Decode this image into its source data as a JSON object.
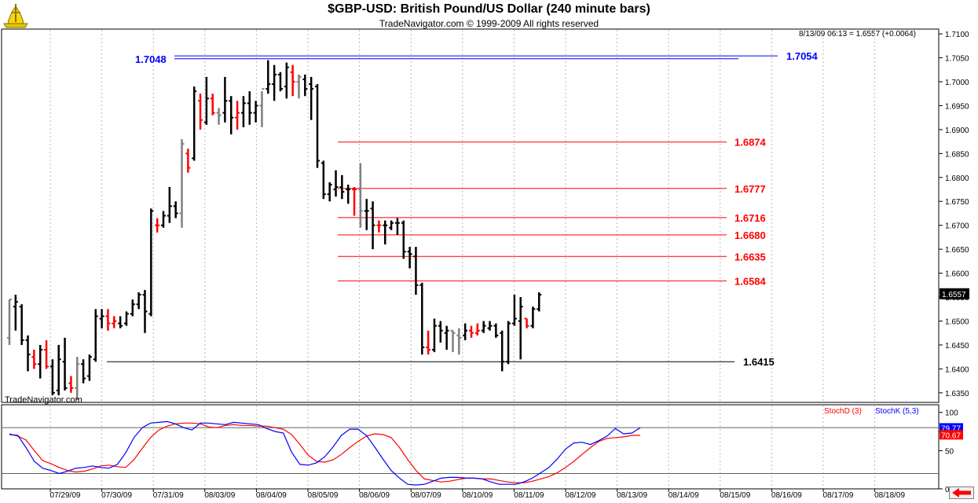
{
  "header": {
    "title": "$GBP-USD:  British Pound/US Dollar  (240 minute bars)",
    "subtitle": "TradeNavigator.com © 1999-2009 All rights reserved",
    "quote": "8/13/09 06:13 = 1.6557 (+0.0064)",
    "watermark": "TradeNavigator.com"
  },
  "colors": {
    "up_bar": "#000000",
    "down_bar": "#ff0000",
    "neutral_bar": "#808080",
    "retracement": "#ff0000",
    "top_level": "#0000ff",
    "stoch_d": "#ff0000",
    "stoch_k": "#0000ff"
  },
  "chart_data": [
    {
      "type": "ohlc",
      "title": "$GBP-USD:  British Pound/US Dollar  (240 minute bars)",
      "x_tick_labels": [
        "07/29/09",
        "07/30/09",
        "07/31/09",
        "08/03/09",
        "08/04/09",
        "08/05/09",
        "08/06/09",
        "08/07/09",
        "08/10/09",
        "08/11/09",
        "08/12/09",
        "08/13/09",
        "08/14/09",
        "08/15/09",
        "08/16/09",
        "08/17/09",
        "08/18/09"
      ],
      "y_ticks": [
        "1.6350",
        "1.6400",
        "1.6450",
        "1.6500",
        "1.6550",
        "1.6600",
        "1.6650",
        "1.6700",
        "1.6750",
        "1.6800",
        "1.6850",
        "1.6900",
        "1.6950",
        "1.7000",
        "1.7050",
        "1.7100"
      ],
      "ylim": [
        1.633,
        1.711
      ],
      "last_price_label": "1.6557",
      "bars": [
        {
          "o": 1.6465,
          "h": 1.6545,
          "l": 1.645,
          "c": 1.6545,
          "t": "n"
        },
        {
          "o": 1.653,
          "h": 1.6555,
          "l": 1.648,
          "c": 1.654,
          "t": "u"
        },
        {
          "o": 1.653,
          "h": 1.6535,
          "l": 1.645,
          "c": 1.646,
          "t": "u"
        },
        {
          "o": 1.646,
          "h": 1.647,
          "l": 1.6395,
          "c": 1.643,
          "t": "u"
        },
        {
          "o": 1.6425,
          "h": 1.644,
          "l": 1.64,
          "c": 1.641,
          "t": "d"
        },
        {
          "o": 1.641,
          "h": 1.645,
          "l": 1.638,
          "c": 1.644,
          "t": "u"
        },
        {
          "o": 1.644,
          "h": 1.646,
          "l": 1.64,
          "c": 1.6405,
          "t": "d"
        },
        {
          "o": 1.6405,
          "h": 1.642,
          "l": 1.6345,
          "c": 1.635,
          "t": "u"
        },
        {
          "o": 1.6355,
          "h": 1.645,
          "l": 1.6345,
          "c": 1.642,
          "t": "u"
        },
        {
          "o": 1.6415,
          "h": 1.6465,
          "l": 1.6355,
          "c": 1.636,
          "t": "u"
        },
        {
          "o": 1.637,
          "h": 1.6385,
          "l": 1.635,
          "c": 1.636,
          "t": "d"
        },
        {
          "o": 1.636,
          "h": 1.6425,
          "l": 1.6335,
          "c": 1.641,
          "t": "n"
        },
        {
          "o": 1.641,
          "h": 1.642,
          "l": 1.637,
          "c": 1.638,
          "t": "u"
        },
        {
          "o": 1.6385,
          "h": 1.643,
          "l": 1.6375,
          "c": 1.6425,
          "t": "u"
        },
        {
          "o": 1.642,
          "h": 1.6525,
          "l": 1.6415,
          "c": 1.651,
          "t": "u"
        },
        {
          "o": 1.6505,
          "h": 1.6525,
          "l": 1.6485,
          "c": 1.651,
          "t": "u"
        },
        {
          "o": 1.651,
          "h": 1.6525,
          "l": 1.648,
          "c": 1.6495,
          "t": "d"
        },
        {
          "o": 1.6495,
          "h": 1.651,
          "l": 1.6485,
          "c": 1.65,
          "t": "d"
        },
        {
          "o": 1.6495,
          "h": 1.651,
          "l": 1.6485,
          "c": 1.649,
          "t": "u"
        },
        {
          "o": 1.6495,
          "h": 1.652,
          "l": 1.649,
          "c": 1.6515,
          "t": "u"
        },
        {
          "o": 1.6515,
          "h": 1.6545,
          "l": 1.651,
          "c": 1.6535,
          "t": "u"
        },
        {
          "o": 1.6535,
          "h": 1.656,
          "l": 1.6525,
          "c": 1.6555,
          "t": "u"
        },
        {
          "o": 1.6555,
          "h": 1.6565,
          "l": 1.6475,
          "c": 1.652,
          "t": "u"
        },
        {
          "o": 1.6515,
          "h": 1.6735,
          "l": 1.651,
          "c": 1.673,
          "t": "u"
        },
        {
          "o": 1.67,
          "h": 1.6715,
          "l": 1.6685,
          "c": 1.67,
          "t": "d"
        },
        {
          "o": 1.67,
          "h": 1.673,
          "l": 1.6695,
          "c": 1.672,
          "t": "u"
        },
        {
          "o": 1.672,
          "h": 1.678,
          "l": 1.6705,
          "c": 1.674,
          "t": "u"
        },
        {
          "o": 1.674,
          "h": 1.675,
          "l": 1.6715,
          "c": 1.6725,
          "t": "u"
        },
        {
          "o": 1.6725,
          "h": 1.688,
          "l": 1.6695,
          "c": 1.687,
          "t": "n"
        },
        {
          "o": 1.685,
          "h": 1.686,
          "l": 1.681,
          "c": 1.682,
          "t": "d"
        },
        {
          "o": 1.684,
          "h": 1.699,
          "l": 1.6835,
          "c": 1.698,
          "t": "u"
        },
        {
          "o": 1.696,
          "h": 1.6975,
          "l": 1.69,
          "c": 1.692,
          "t": "d"
        },
        {
          "o": 1.6915,
          "h": 1.701,
          "l": 1.691,
          "c": 1.6965,
          "t": "u"
        },
        {
          "o": 1.6965,
          "h": 1.6975,
          "l": 1.693,
          "c": 1.6935,
          "t": "d"
        },
        {
          "o": 1.6935,
          "h": 1.6945,
          "l": 1.691,
          "c": 1.693,
          "t": "n"
        },
        {
          "o": 1.6935,
          "h": 1.701,
          "l": 1.6915,
          "c": 1.696,
          "t": "u"
        },
        {
          "o": 1.696,
          "h": 1.697,
          "l": 1.689,
          "c": 1.6925,
          "t": "u"
        },
        {
          "o": 1.6925,
          "h": 1.696,
          "l": 1.69,
          "c": 1.6935,
          "t": "d"
        },
        {
          "o": 1.6935,
          "h": 1.697,
          "l": 1.6905,
          "c": 1.6955,
          "t": "u"
        },
        {
          "o": 1.6955,
          "h": 1.698,
          "l": 1.691,
          "c": 1.6935,
          "t": "u"
        },
        {
          "o": 1.6935,
          "h": 1.696,
          "l": 1.6915,
          "c": 1.695,
          "t": "u"
        },
        {
          "o": 1.695,
          "h": 1.698,
          "l": 1.6905,
          "c": 1.6985,
          "t": "n"
        },
        {
          "o": 1.6985,
          "h": 1.7045,
          "l": 1.6975,
          "c": 1.6995,
          "t": "u"
        },
        {
          "o": 1.6995,
          "h": 1.7035,
          "l": 1.696,
          "c": 1.7015,
          "t": "u"
        },
        {
          "o": 1.7015,
          "h": 1.702,
          "l": 1.698,
          "c": 1.6985,
          "t": "u"
        },
        {
          "o": 1.699,
          "h": 1.704,
          "l": 1.6965,
          "c": 1.703,
          "t": "u"
        },
        {
          "o": 1.702,
          "h": 1.7035,
          "l": 1.697,
          "c": 1.7,
          "t": "d"
        },
        {
          "o": 1.7,
          "h": 1.7015,
          "l": 1.6965,
          "c": 1.701,
          "t": "n"
        },
        {
          "o": 1.7005,
          "h": 1.7015,
          "l": 1.697,
          "c": 1.6985,
          "t": "u"
        },
        {
          "o": 1.6995,
          "h": 1.701,
          "l": 1.692,
          "c": 1.6985,
          "t": "u"
        },
        {
          "o": 1.699,
          "h": 1.6995,
          "l": 1.682,
          "c": 1.6835,
          "t": "u"
        },
        {
          "o": 1.683,
          "h": 1.6835,
          "l": 1.6755,
          "c": 1.6765,
          "t": "u"
        },
        {
          "o": 1.6765,
          "h": 1.679,
          "l": 1.675,
          "c": 1.6785,
          "t": "u"
        },
        {
          "o": 1.6775,
          "h": 1.6815,
          "l": 1.676,
          "c": 1.678,
          "t": "u"
        },
        {
          "o": 1.678,
          "h": 1.6805,
          "l": 1.6755,
          "c": 1.677,
          "t": "u"
        },
        {
          "o": 1.6775,
          "h": 1.6785,
          "l": 1.6745,
          "c": 1.6775,
          "t": "u"
        },
        {
          "o": 1.6775,
          "h": 1.678,
          "l": 1.672,
          "c": 1.6775,
          "t": "d"
        },
        {
          "o": 1.6775,
          "h": 1.683,
          "l": 1.6695,
          "c": 1.673,
          "t": "n"
        },
        {
          "o": 1.673,
          "h": 1.6755,
          "l": 1.669,
          "c": 1.673,
          "t": "u"
        },
        {
          "o": 1.6735,
          "h": 1.675,
          "l": 1.665,
          "c": 1.67,
          "t": "u"
        },
        {
          "o": 1.67,
          "h": 1.671,
          "l": 1.6685,
          "c": 1.67,
          "t": "d"
        },
        {
          "o": 1.67,
          "h": 1.671,
          "l": 1.666,
          "c": 1.67,
          "t": "u"
        },
        {
          "o": 1.6695,
          "h": 1.671,
          "l": 1.669,
          "c": 1.6705,
          "t": "u"
        },
        {
          "o": 1.6705,
          "h": 1.6715,
          "l": 1.668,
          "c": 1.6705,
          "t": "u"
        },
        {
          "o": 1.6705,
          "h": 1.671,
          "l": 1.663,
          "c": 1.6645,
          "t": "u"
        },
        {
          "o": 1.6645,
          "h": 1.6655,
          "l": 1.661,
          "c": 1.664,
          "t": "u"
        },
        {
          "o": 1.6635,
          "h": 1.6655,
          "l": 1.6555,
          "c": 1.6575,
          "t": "u"
        },
        {
          "o": 1.6575,
          "h": 1.658,
          "l": 1.643,
          "c": 1.6445,
          "t": "u"
        },
        {
          "o": 1.6445,
          "h": 1.648,
          "l": 1.643,
          "c": 1.644,
          "t": "d"
        },
        {
          "o": 1.644,
          "h": 1.6505,
          "l": 1.6435,
          "c": 1.649,
          "t": "u"
        },
        {
          "o": 1.649,
          "h": 1.65,
          "l": 1.6455,
          "c": 1.648,
          "t": "u"
        },
        {
          "o": 1.6475,
          "h": 1.649,
          "l": 1.644,
          "c": 1.648,
          "t": "u"
        },
        {
          "o": 1.648,
          "h": 1.648,
          "l": 1.6435,
          "c": 1.6475,
          "t": "n"
        },
        {
          "o": 1.647,
          "h": 1.6485,
          "l": 1.643,
          "c": 1.6465,
          "t": "n"
        },
        {
          "o": 1.647,
          "h": 1.6495,
          "l": 1.646,
          "c": 1.648,
          "t": "u"
        },
        {
          "o": 1.648,
          "h": 1.649,
          "l": 1.6465,
          "c": 1.6475,
          "t": "d"
        },
        {
          "o": 1.6475,
          "h": 1.6495,
          "l": 1.647,
          "c": 1.648,
          "t": "d"
        },
        {
          "o": 1.648,
          "h": 1.65,
          "l": 1.6475,
          "c": 1.649,
          "t": "u"
        },
        {
          "o": 1.6485,
          "h": 1.65,
          "l": 1.648,
          "c": 1.649,
          "t": "u"
        },
        {
          "o": 1.649,
          "h": 1.6495,
          "l": 1.6465,
          "c": 1.647,
          "t": "u"
        },
        {
          "o": 1.6475,
          "h": 1.648,
          "l": 1.6395,
          "c": 1.6415,
          "t": "u"
        },
        {
          "o": 1.6415,
          "h": 1.65,
          "l": 1.641,
          "c": 1.6495,
          "t": "u"
        },
        {
          "o": 1.6495,
          "h": 1.6555,
          "l": 1.649,
          "c": 1.6505,
          "t": "u"
        },
        {
          "o": 1.65,
          "h": 1.655,
          "l": 1.642,
          "c": 1.653,
          "t": "u"
        },
        {
          "o": 1.6505,
          "h": 1.6505,
          "l": 1.6485,
          "c": 1.649,
          "t": "d"
        },
        {
          "o": 1.649,
          "h": 1.653,
          "l": 1.6485,
          "c": 1.6525,
          "t": "u"
        },
        {
          "o": 1.6525,
          "h": 1.656,
          "l": 1.652,
          "c": 1.6555,
          "t": "u"
        }
      ],
      "levels": [
        {
          "label": "1.7048",
          "value": 1.7048,
          "side": "left"
        },
        {
          "label": "1.7054",
          "value": 1.7054,
          "side": "right"
        },
        {
          "label": "1.6874",
          "value": 1.6874
        },
        {
          "label": "1.6777",
          "value": 1.6777
        },
        {
          "label": "1.6716",
          "value": 1.6716
        },
        {
          "label": "1.6680",
          "value": 1.668
        },
        {
          "label": "1.6635",
          "value": 1.6635
        },
        {
          "label": "1.6584",
          "value": 1.6584
        },
        {
          "label": "1.6415",
          "value": 1.6415
        }
      ]
    },
    {
      "type": "line",
      "title": "Stochastic",
      "ylim": [
        0,
        110
      ],
      "y_ticks": [
        "0",
        "50",
        "75",
        "100"
      ],
      "reference_lines": [
        80,
        20
      ],
      "series": [
        {
          "name": "StochD (3)",
          "last_label": "70.67",
          "values": [
            72,
            69,
            64,
            50,
            37,
            33,
            28,
            24,
            22,
            23,
            26,
            30,
            31,
            29,
            28,
            38,
            53,
            67,
            77,
            82,
            85,
            86,
            86,
            85,
            81,
            80,
            83,
            84,
            83,
            83,
            82,
            82,
            80,
            78,
            71,
            58,
            44,
            36,
            35,
            38,
            45,
            54,
            62,
            69,
            72,
            71,
            67,
            54,
            38,
            24,
            13,
            11,
            9,
            10,
            12,
            14,
            14,
            13,
            13,
            11,
            9,
            8,
            8,
            10,
            13,
            16,
            21,
            28,
            36,
            45,
            54,
            62,
            66,
            67,
            68,
            70,
            70
          ]
        },
        {
          "name": "StochK (5,3)",
          "last_label": "79.77",
          "values": [
            71,
            70,
            54,
            36,
            27,
            24,
            20,
            23,
            27,
            28,
            30,
            28,
            27,
            32,
            47,
            67,
            80,
            86,
            87,
            88,
            85,
            80,
            77,
            86,
            86,
            85,
            84,
            87,
            86,
            85,
            84,
            79,
            75,
            73,
            48,
            32,
            31,
            34,
            42,
            55,
            70,
            78,
            78,
            70,
            55,
            39,
            24,
            14,
            6,
            5,
            6,
            10,
            14,
            15,
            15,
            14,
            14,
            13,
            9,
            6,
            6,
            6,
            9,
            14,
            21,
            28,
            39,
            52,
            60,
            61,
            58,
            63,
            69,
            79,
            72,
            73,
            80
          ]
        }
      ]
    }
  ]
}
